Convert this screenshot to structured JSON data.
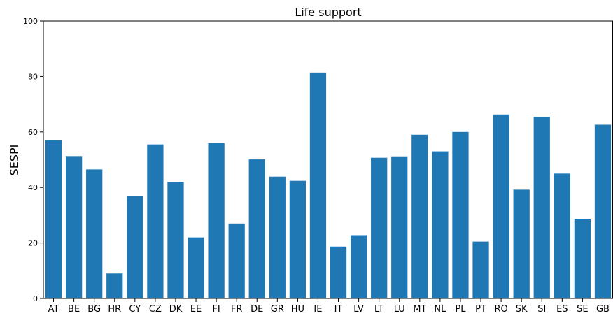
{
  "chart_data": {
    "type": "bar",
    "title": "Life support",
    "xlabel": "",
    "ylabel": "SESPI",
    "ylim": [
      0,
      100
    ],
    "yticks": [
      0,
      20,
      40,
      60,
      80,
      100
    ],
    "grid": false,
    "bar_color": "#1f77b4",
    "categories": [
      "AT",
      "BE",
      "BG",
      "HR",
      "CY",
      "CZ",
      "DK",
      "EE",
      "FI",
      "FR",
      "DE",
      "GR",
      "HU",
      "IE",
      "IT",
      "LV",
      "LT",
      "LU",
      "MT",
      "NL",
      "PL",
      "PT",
      "RO",
      "SK",
      "SI",
      "ES",
      "SE",
      "GB"
    ],
    "values": [
      57,
      51.3,
      46.5,
      9,
      37,
      55.5,
      42,
      22,
      56,
      27,
      50.1,
      43.9,
      42.4,
      81.4,
      18.7,
      22.8,
      50.7,
      51.2,
      59,
      53,
      60,
      20.5,
      66.3,
      39.2,
      65.5,
      45,
      28.7,
      62.6
    ]
  }
}
